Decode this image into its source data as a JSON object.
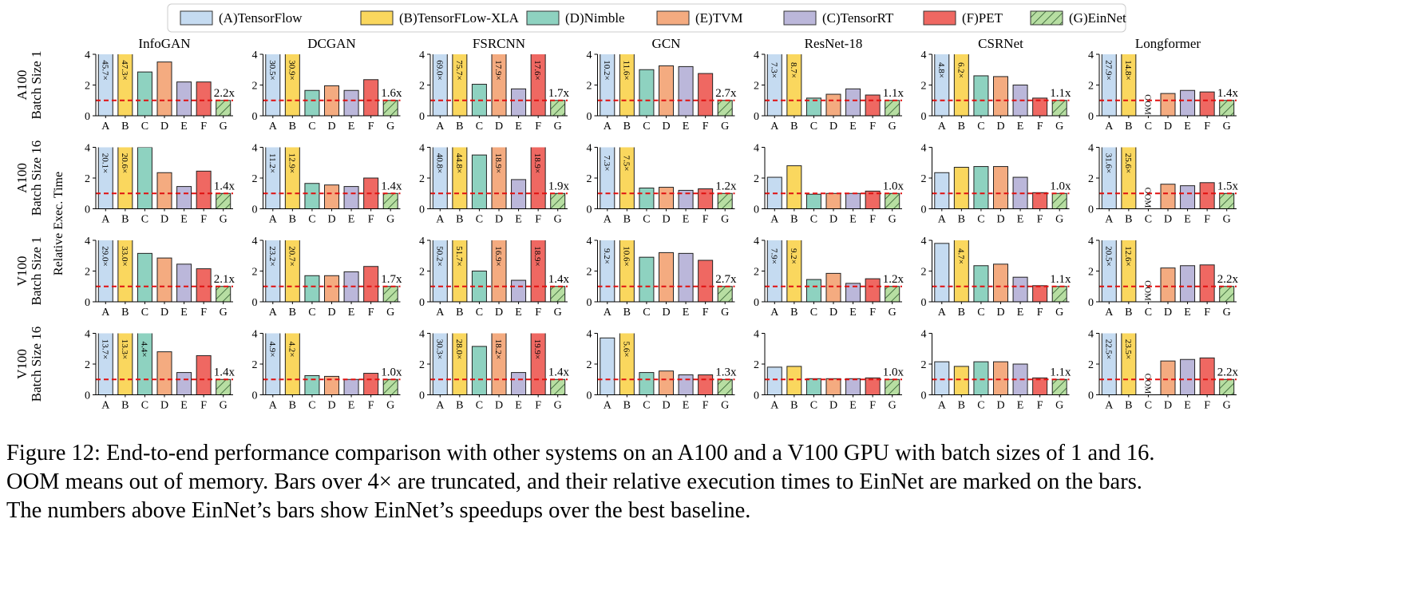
{
  "chart_data": {
    "type": "bar",
    "legend": [
      {
        "name": "(A)TensorFlow",
        "color": "#c5dbf1"
      },
      {
        "name": "(B)TensorFLow-XLA",
        "color": "#fad75e"
      },
      {
        "name": "(D)Nimble",
        "color": "#8ed2c0"
      },
      {
        "name": "(E)TVM",
        "color": "#f4ab80"
      },
      {
        "name": "(C)TensorRT",
        "color": "#bbb7da"
      },
      {
        "name": "(F)PET",
        "color": "#ef6862"
      },
      {
        "name": "(G)EinNet",
        "color": "#b7dea2",
        "hatch": true
      }
    ],
    "categories": [
      "A",
      "B",
      "C",
      "D",
      "E",
      "F",
      "G"
    ],
    "colors": [
      "#c5dbf1",
      "#fad75e",
      "#8ed2c0",
      "#f4ab80",
      "#bbb7da",
      "#ef6862",
      "#b7dea2"
    ],
    "hatch": [
      false,
      false,
      false,
      false,
      false,
      false,
      true
    ],
    "ylabel": "Relative Exec. Time",
    "ylim": [
      0,
      4
    ],
    "yticks": [
      0,
      2,
      4
    ],
    "reference_line": 1,
    "columns": [
      "InfoGAN",
      "DCGAN",
      "FSRCNN",
      "GCN",
      "ResNet-18",
      "CSRNet",
      "Longformer"
    ],
    "rows": [
      [
        "A100",
        "Batch Size 1"
      ],
      [
        "A100",
        "Batch Size 16"
      ],
      [
        "V100",
        "Batch Size 1"
      ],
      [
        "V100",
        "Batch Size 16"
      ]
    ],
    "panels": [
      [
        {
          "values": [
            45.7,
            47.3,
            2.85,
            3.5,
            2.2,
            2.2,
            1
          ],
          "value_labels": [
            "45.7×",
            "47.3×",
            null,
            null,
            null,
            null,
            null
          ],
          "speedup_label": "2.2x"
        },
        {
          "values": [
            30.5,
            30.9,
            1.65,
            1.95,
            1.65,
            2.35,
            1
          ],
          "value_labels": [
            "30.5×",
            "30.9×",
            null,
            null,
            null,
            null,
            null
          ],
          "speedup_label": "1.6x"
        },
        {
          "values": [
            69.0,
            75.7,
            2.05,
            17.9,
            1.75,
            17.6,
            1
          ],
          "value_labels": [
            "69.0×",
            "75.7×",
            null,
            "17.9×",
            null,
            "17.6×",
            null
          ],
          "speedup_label": "1.7x"
        },
        {
          "values": [
            10.2,
            11.6,
            3.0,
            3.25,
            3.2,
            2.75,
            1
          ],
          "value_labels": [
            "10.2×",
            "11.6×",
            null,
            null,
            null,
            null,
            null
          ],
          "speedup_label": "2.7x"
        },
        {
          "values": [
            7.3,
            8.7,
            1.15,
            1.4,
            1.75,
            1.35,
            1
          ],
          "value_labels": [
            "7.3×",
            "8.7×",
            null,
            null,
            null,
            null,
            null
          ],
          "speedup_label": "1.1x"
        },
        {
          "values": [
            4.8,
            6.2,
            2.6,
            2.55,
            2.0,
            1.15,
            1
          ],
          "value_labels": [
            "4.8×",
            "6.2×",
            null,
            null,
            null,
            null,
            null
          ],
          "speedup_label": "1.1x"
        },
        {
          "values": [
            27.9,
            14.8,
            null,
            1.45,
            1.65,
            1.55,
            1
          ],
          "value_labels": [
            "27.9×",
            "14.8×",
            "OOM",
            null,
            null,
            null,
            null
          ],
          "speedup_label": "1.4x"
        }
      ],
      [
        {
          "values": [
            20.1,
            20.6,
            4.0,
            2.35,
            1.45,
            2.45,
            1
          ],
          "value_labels": [
            "20.1×",
            "20.6×",
            null,
            null,
            null,
            null,
            null
          ],
          "speedup_label": "1.4x"
        },
        {
          "values": [
            11.2,
            12.9,
            1.65,
            1.55,
            1.45,
            2.0,
            1
          ],
          "value_labels": [
            "11.2×",
            "12.9×",
            null,
            null,
            null,
            null,
            null
          ],
          "speedup_label": "1.4x"
        },
        {
          "values": [
            40.8,
            44.8,
            3.5,
            18.9,
            1.9,
            18.9,
            1
          ],
          "value_labels": [
            "40.8×",
            "44.8×",
            null,
            "18.9×",
            null,
            "18.9×",
            null
          ],
          "speedup_label": "1.9x"
        },
        {
          "values": [
            7.3,
            7.5,
            1.35,
            1.4,
            1.2,
            1.3,
            1
          ],
          "value_labels": [
            "7.3×",
            "7.5×",
            null,
            null,
            null,
            null,
            null
          ],
          "speedup_label": "1.2x"
        },
        {
          "values": [
            2.05,
            2.8,
            0.95,
            1.0,
            1.0,
            1.15,
            1
          ],
          "value_labels": [
            null,
            null,
            null,
            null,
            null,
            null,
            null
          ],
          "speedup_label": "1.0x"
        },
        {
          "values": [
            2.35,
            2.7,
            2.75,
            2.75,
            2.05,
            1.05,
            1
          ],
          "value_labels": [
            null,
            null,
            null,
            null,
            null,
            null,
            null
          ],
          "speedup_label": "1.0x"
        },
        {
          "values": [
            31.6,
            25.6,
            null,
            1.6,
            1.5,
            1.7,
            1
          ],
          "value_labels": [
            "31.6×",
            "25.6×",
            "OOM",
            null,
            null,
            null,
            null
          ],
          "speedup_label": "1.5x"
        }
      ],
      [
        {
          "values": [
            29.0,
            33.0,
            3.15,
            2.85,
            2.45,
            2.15,
            1
          ],
          "value_labels": [
            "29.0×",
            "33.0×",
            null,
            null,
            null,
            null,
            null
          ],
          "speedup_label": "2.1x"
        },
        {
          "values": [
            23.2,
            20.7,
            1.7,
            1.7,
            1.95,
            2.3,
            1
          ],
          "value_labels": [
            "23.2×",
            "20.7×",
            null,
            null,
            null,
            null,
            null
          ],
          "speedup_label": "1.7x"
        },
        {
          "values": [
            50.2,
            51.7,
            2.0,
            16.9,
            1.4,
            18.9,
            1
          ],
          "value_labels": [
            "50.2×",
            "51.7×",
            null,
            "16.9×",
            null,
            "18.9×",
            null
          ],
          "speedup_label": "1.4x"
        },
        {
          "values": [
            9.2,
            10.6,
            2.9,
            3.2,
            3.15,
            2.7,
            1
          ],
          "value_labels": [
            "9.2×",
            "10.6×",
            null,
            null,
            null,
            null,
            null
          ],
          "speedup_label": "2.7x"
        },
        {
          "values": [
            7.9,
            9.2,
            1.45,
            1.85,
            1.2,
            1.5,
            1
          ],
          "value_labels": [
            "7.9×",
            "9.2×",
            null,
            null,
            null,
            null,
            null
          ],
          "speedup_label": "1.2x"
        },
        {
          "values": [
            3.8,
            4.7,
            2.35,
            2.45,
            1.6,
            1.05,
            1
          ],
          "value_labels": [
            null,
            "4.7×",
            null,
            null,
            null,
            null,
            null
          ],
          "speedup_label": "1.1x"
        },
        {
          "values": [
            20.5,
            12.6,
            null,
            2.2,
            2.35,
            2.4,
            1
          ],
          "value_labels": [
            "20.5×",
            "12.6×",
            "OOM",
            null,
            null,
            null,
            null
          ],
          "speedup_label": "2.2x"
        }
      ],
      [
        {
          "values": [
            13.7,
            13.3,
            4.4,
            2.8,
            1.45,
            2.55,
            1
          ],
          "value_labels": [
            "13.7×",
            "13.3×",
            "4.4×",
            null,
            null,
            null,
            null
          ],
          "speedup_label": "1.4x"
        },
        {
          "values": [
            4.9,
            4.2,
            1.25,
            1.2,
            1.0,
            1.4,
            1
          ],
          "value_labels": [
            "4.9×",
            "4.2×",
            null,
            null,
            null,
            null,
            null
          ],
          "speedup_label": "1.0x"
        },
        {
          "values": [
            30.3,
            28.0,
            3.15,
            18.2,
            1.45,
            19.9,
            1
          ],
          "value_labels": [
            "30.3×",
            "28.0×",
            null,
            "18.2×",
            null,
            "19.9×",
            null
          ],
          "speedup_label": "1.4x"
        },
        {
          "values": [
            3.7,
            5.6,
            1.45,
            1.55,
            1.3,
            1.3,
            1
          ],
          "value_labels": [
            null,
            "5.6×",
            null,
            null,
            null,
            null,
            null
          ],
          "speedup_label": "1.3x"
        },
        {
          "values": [
            1.8,
            1.85,
            1.05,
            1.05,
            1.05,
            1.1,
            1
          ],
          "value_labels": [
            null,
            null,
            null,
            null,
            null,
            null,
            null
          ],
          "speedup_label": "1.0x"
        },
        {
          "values": [
            2.15,
            1.85,
            2.15,
            2.15,
            2.0,
            1.1,
            1
          ],
          "value_labels": [
            null,
            null,
            null,
            null,
            null,
            null,
            null
          ],
          "speedup_label": "1.1x"
        },
        {
          "values": [
            22.5,
            23.5,
            null,
            2.2,
            2.3,
            2.4,
            1
          ],
          "value_labels": [
            "22.5×",
            "23.5×",
            "OOM",
            null,
            null,
            null,
            null
          ],
          "speedup_label": "2.2x"
        }
      ]
    ]
  },
  "caption": [
    "Figure 12: End-to-end performance comparison with other systems on an A100 and a V100 GPU with batch sizes of 1 and 16.",
    "OOM means out of memory. Bars over 4× are truncated, and their relative execution times to EinNet are marked on the bars.",
    "The numbers above EinNet’s bars show EinNet’s speedups over the best baseline."
  ]
}
